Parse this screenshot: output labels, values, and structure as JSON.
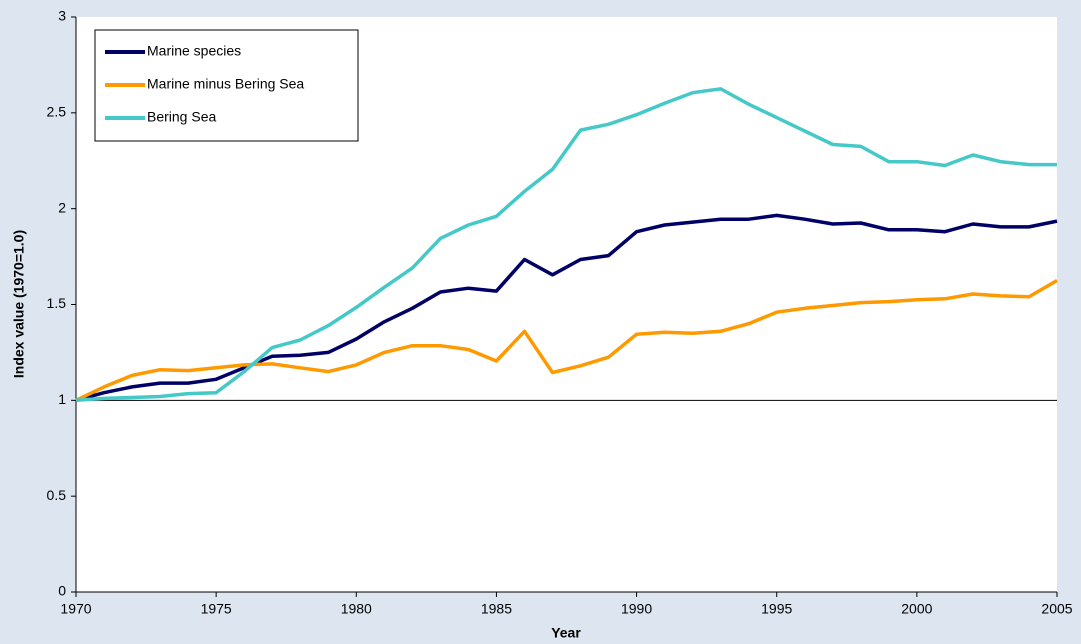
{
  "chart_data": {
    "type": "line",
    "x_label": "Year",
    "y_label": "Index value (1970=1.0)",
    "x": [
      1970,
      1971,
      1972,
      1973,
      1974,
      1975,
      1976,
      1977,
      1978,
      1979,
      1980,
      1981,
      1982,
      1983,
      1984,
      1985,
      1986,
      1987,
      1988,
      1989,
      1990,
      1991,
      1992,
      1993,
      1994,
      1995,
      1996,
      1997,
      1998,
      1999,
      2000,
      2001,
      2002,
      2003,
      2004,
      2005
    ],
    "series": [
      {
        "name": "Marine species",
        "color": "#000066",
        "values": [
          1.0,
          1.04,
          1.07,
          1.09,
          1.09,
          1.11,
          1.17,
          1.23,
          1.235,
          1.25,
          1.32,
          1.41,
          1.48,
          1.565,
          1.585,
          1.57,
          1.735,
          1.655,
          1.735,
          1.755,
          1.88,
          1.915,
          1.93,
          1.945,
          1.945,
          1.965,
          1.945,
          1.92,
          1.925,
          1.89,
          1.89,
          1.88,
          1.92,
          1.905,
          1.905,
          1.935
        ]
      },
      {
        "name": "Marine minus Bering Sea",
        "color": "#ff9900",
        "values": [
          1.0,
          1.07,
          1.13,
          1.16,
          1.155,
          1.17,
          1.185,
          1.19,
          1.17,
          1.15,
          1.185,
          1.25,
          1.285,
          1.285,
          1.265,
          1.205,
          1.36,
          1.145,
          1.18,
          1.225,
          1.345,
          1.355,
          1.35,
          1.36,
          1.4,
          1.46,
          1.48,
          1.495,
          1.51,
          1.515,
          1.525,
          1.53,
          1.555,
          1.545,
          1.54,
          1.625
        ]
      },
      {
        "name": "Bering Sea",
        "color": "#44c8c8",
        "values": [
          1.0,
          1.01,
          1.015,
          1.02,
          1.035,
          1.04,
          1.15,
          1.275,
          1.315,
          1.39,
          1.485,
          1.59,
          1.69,
          1.845,
          1.915,
          1.96,
          2.09,
          2.205,
          2.41,
          2.44,
          2.49,
          2.55,
          2.605,
          2.625,
          2.545,
          2.475,
          2.405,
          2.335,
          2.325,
          2.245,
          2.245,
          2.225,
          2.28,
          2.245,
          2.23,
          2.23
        ]
      }
    ],
    "xlim": [
      1970,
      2005
    ],
    "xticks": [
      1970,
      1975,
      1980,
      1985,
      1990,
      1995,
      2000,
      2005
    ],
    "ylim": [
      0,
      3
    ],
    "yticks": [
      0,
      0.5,
      1,
      1.5,
      2,
      2.5,
      3
    ],
    "reference_line": 1,
    "legend": "upper left"
  }
}
